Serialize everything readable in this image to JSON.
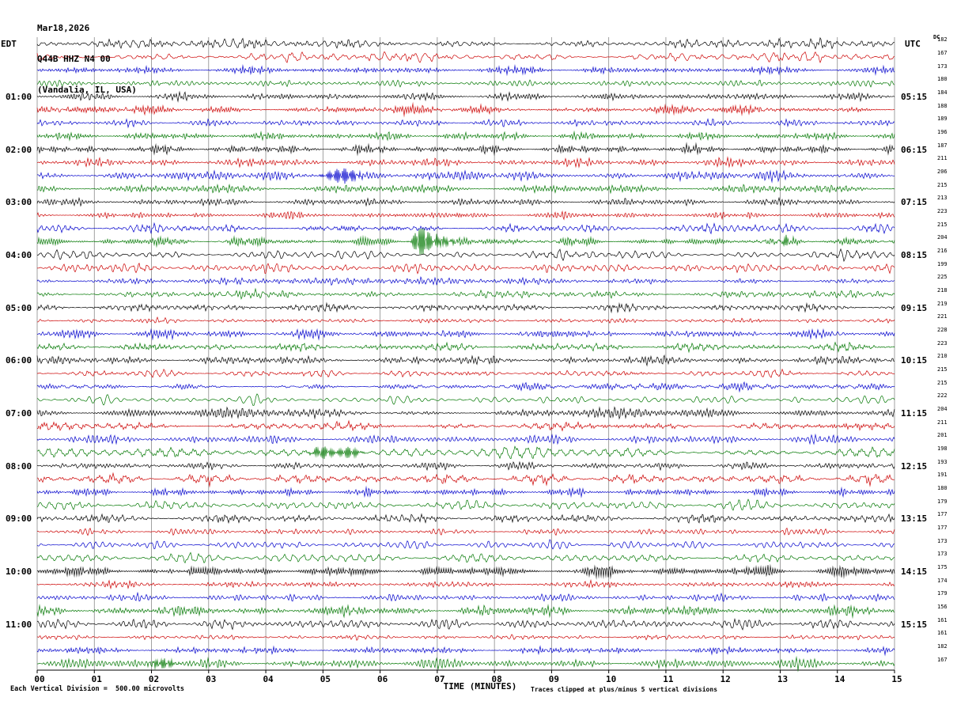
{
  "header": {
    "date": "Mar18,2026",
    "station": "Q44B HHZ N4 00",
    "location": "(Vandalia, IL, USA)"
  },
  "axes": {
    "left_timezone": "EDT",
    "right_timezone": "UTC",
    "dc_label": "DC",
    "x_title": "TIME (MINUTES)",
    "x_ticks": [
      "00",
      "01",
      "02",
      "03",
      "04",
      "05",
      "06",
      "07",
      "08",
      "09",
      "10",
      "11",
      "12",
      "13",
      "14",
      "15"
    ],
    "left_note": "Each Vertical Division =  500.00 microvolts",
    "right_note": "Traces clipped at plus/minus 5 vertical divisions"
  },
  "chart_data": {
    "type": "line",
    "subtype": "seismogram-heliplot-webicorder",
    "minutes_per_row": 15,
    "x_range_minutes": [
      0,
      15
    ],
    "grid": true,
    "rows_count": 48,
    "trace_color_cycle": [
      "#000000",
      "#cc0000",
      "#0000cc",
      "#007700"
    ],
    "grid_color": "#8a8a8a",
    "rows": [
      {
        "left": "",
        "right": "",
        "color": "#000000",
        "dc": 182
      },
      {
        "left": "",
        "right": "",
        "color": "#cc0000",
        "dc": 167
      },
      {
        "left": "",
        "right": "",
        "color": "#0000cc",
        "dc": 173
      },
      {
        "left": "",
        "right": "",
        "color": "#007700",
        "dc": 180
      },
      {
        "left": "01:00",
        "right": "05:15",
        "color": "#000000",
        "dc": 184
      },
      {
        "left": "",
        "right": "",
        "color": "#cc0000",
        "dc": 188
      },
      {
        "left": "",
        "right": "",
        "color": "#0000cc",
        "dc": 189
      },
      {
        "left": "",
        "right": "",
        "color": "#007700",
        "dc": 196
      },
      {
        "left": "02:00",
        "right": "06:15",
        "color": "#000000",
        "dc": 187
      },
      {
        "left": "",
        "right": "",
        "color": "#cc0000",
        "dc": 211
      },
      {
        "left": "",
        "right": "",
        "color": "#0000cc",
        "dc": 206
      },
      {
        "left": "",
        "right": "",
        "color": "#007700",
        "dc": 215
      },
      {
        "left": "03:00",
        "right": "07:15",
        "color": "#000000",
        "dc": 213
      },
      {
        "left": "",
        "right": "",
        "color": "#cc0000",
        "dc": 223
      },
      {
        "left": "",
        "right": "",
        "color": "#0000cc",
        "dc": 215
      },
      {
        "left": "",
        "right": "",
        "color": "#007700",
        "dc": 204
      },
      {
        "left": "04:00",
        "right": "08:15",
        "color": "#000000",
        "dc": 216
      },
      {
        "left": "",
        "right": "",
        "color": "#cc0000",
        "dc": 199
      },
      {
        "left": "",
        "right": "",
        "color": "#0000cc",
        "dc": 225
      },
      {
        "left": "",
        "right": "",
        "color": "#007700",
        "dc": 218
      },
      {
        "left": "05:00",
        "right": "09:15",
        "color": "#000000",
        "dc": 219
      },
      {
        "left": "",
        "right": "",
        "color": "#cc0000",
        "dc": 221
      },
      {
        "left": "",
        "right": "",
        "color": "#0000cc",
        "dc": 228
      },
      {
        "left": "",
        "right": "",
        "color": "#007700",
        "dc": 223
      },
      {
        "left": "06:00",
        "right": "10:15",
        "color": "#000000",
        "dc": 210
      },
      {
        "left": "",
        "right": "",
        "color": "#cc0000",
        "dc": 215
      },
      {
        "left": "",
        "right": "",
        "color": "#0000cc",
        "dc": 215
      },
      {
        "left": "",
        "right": "",
        "color": "#007700",
        "dc": 222
      },
      {
        "left": "07:00",
        "right": "11:15",
        "color": "#000000",
        "dc": 204
      },
      {
        "left": "",
        "right": "",
        "color": "#cc0000",
        "dc": 211
      },
      {
        "left": "",
        "right": "",
        "color": "#0000cc",
        "dc": 201
      },
      {
        "left": "",
        "right": "",
        "color": "#007700",
        "dc": 198
      },
      {
        "left": "08:00",
        "right": "12:15",
        "color": "#000000",
        "dc": 193
      },
      {
        "left": "",
        "right": "",
        "color": "#cc0000",
        "dc": 191
      },
      {
        "left": "",
        "right": "",
        "color": "#0000cc",
        "dc": 180
      },
      {
        "left": "",
        "right": "",
        "color": "#007700",
        "dc": 179
      },
      {
        "left": "09:00",
        "right": "13:15",
        "color": "#000000",
        "dc": 177
      },
      {
        "left": "",
        "right": "",
        "color": "#cc0000",
        "dc": 177
      },
      {
        "left": "",
        "right": "",
        "color": "#0000cc",
        "dc": 173
      },
      {
        "left": "",
        "right": "",
        "color": "#007700",
        "dc": 173
      },
      {
        "left": "10:00",
        "right": "14:15",
        "color": "#000000",
        "dc": 175
      },
      {
        "left": "",
        "right": "",
        "color": "#cc0000",
        "dc": 174
      },
      {
        "left": "",
        "right": "",
        "color": "#0000cc",
        "dc": 179
      },
      {
        "left": "",
        "right": "",
        "color": "#007700",
        "dc": 156
      },
      {
        "left": "11:00",
        "right": "15:15",
        "color": "#000000",
        "dc": 161
      },
      {
        "left": "",
        "right": "",
        "color": "#cc0000",
        "dc": 161
      },
      {
        "left": "",
        "right": "",
        "color": "#0000cc",
        "dc": 182
      },
      {
        "left": "",
        "right": "",
        "color": "#007700",
        "dc": 167
      }
    ],
    "events": [
      {
        "row": 10,
        "minute": 5.35,
        "width_min": 0.45,
        "amp": 3.2
      },
      {
        "row": 15,
        "minute": 6.72,
        "width_min": 0.18,
        "amp": 10
      },
      {
        "row": 15,
        "minute": 6.98,
        "width_min": 0.5,
        "amp": 2.2
      },
      {
        "row": 15,
        "minute": 13.1,
        "width_min": 0.15,
        "amp": 2.0
      },
      {
        "row": 31,
        "minute": 5.0,
        "width_min": 0.3,
        "amp": 2.6
      },
      {
        "row": 31,
        "minute": 5.45,
        "width_min": 0.3,
        "amp": 2.4
      },
      {
        "row": 47,
        "minute": 2.2,
        "width_min": 0.35,
        "amp": 2.0
      }
    ]
  }
}
